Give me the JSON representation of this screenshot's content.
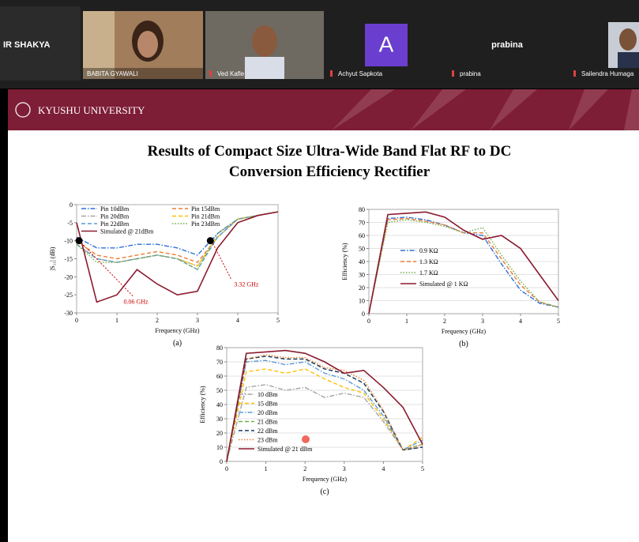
{
  "call": {
    "participants": [
      {
        "name": "IR SHAKYA"
      },
      {
        "name": "BABITA GYAWALI"
      },
      {
        "name": "Ved Kafle"
      },
      {
        "name": "Achyut Sapkota",
        "avatar": "A"
      },
      {
        "name": "prabina",
        "tile_label": "prabina"
      },
      {
        "name": "Sailendra Humaga"
      }
    ]
  },
  "slide": {
    "university": "KYUSHU UNIVERSITY",
    "title": [
      "Results of Compact Size Ultra-Wide Band Flat RF to DC",
      "Conversion Efficiency Rectifier"
    ]
  },
  "chart_data": [
    {
      "type": "line",
      "caption": "(a)",
      "xlabel": "Frequency (GHz)",
      "ylabel": "|S₁₁| (dB)",
      "x": [
        0,
        0.5,
        1,
        1.5,
        2,
        2.5,
        3,
        3.5,
        4,
        4.5,
        5
      ],
      "xlim": [
        0,
        5
      ],
      "xticks": [
        0,
        1,
        2,
        3,
        4,
        5
      ],
      "ylim": [
        -30,
        0
      ],
      "yticks": [
        -30,
        -25,
        -20,
        -15,
        -10,
        -5,
        0
      ],
      "grid": false,
      "legend": "top",
      "legend_columns": 2,
      "series": [
        {
          "name": "Pin 10dBm",
          "color": "#2f6fd6",
          "dash": "dash-dot",
          "values": [
            -9,
            -12,
            -12,
            -11,
            -11,
            -12,
            -14,
            -8,
            -4,
            -3,
            -2
          ]
        },
        {
          "name": "Pin 15dBm",
          "color": "#ed7d31",
          "dash": "dashed",
          "values": [
            -10,
            -14,
            -15,
            -14,
            -13,
            -14,
            -16,
            -9,
            -4,
            -3,
            -2
          ]
        },
        {
          "name": "Pin 20dBm",
          "color": "#a5a5a5",
          "dash": "dash-dot",
          "values": [
            -11,
            -15,
            -16,
            -15,
            -14,
            -15,
            -17,
            -9,
            -4,
            -3,
            -2
          ]
        },
        {
          "name": "Pin 21dBm",
          "color": "#ffc000",
          "dash": "dashed",
          "values": [
            -11,
            -15,
            -16,
            -15,
            -14,
            -15,
            -17,
            -9,
            -4,
            -3,
            -2
          ]
        },
        {
          "name": "Pin 22dBm",
          "color": "#5b9bd5",
          "dash": "dashed",
          "values": [
            -11,
            -15,
            -16,
            -15,
            -14,
            -15,
            -18,
            -9,
            -4,
            -3,
            -2
          ]
        },
        {
          "name": "Pin 23dBm",
          "color": "#70ad47",
          "dash": "dotted",
          "values": [
            -11,
            -16,
            -16,
            -15,
            -14,
            -15,
            -18,
            -8,
            -4,
            -3,
            -2
          ]
        },
        {
          "name": "Simulated @ 21dBm",
          "color": "#8b1a2f",
          "dash": "solid",
          "values": [
            -5,
            -27,
            -25,
            -18,
            -22,
            -25,
            -24,
            -12,
            -5,
            -3,
            -2
          ]
        }
      ],
      "annotations": [
        {
          "text": "0.06 GHz",
          "x": 0.06,
          "y": -10
        },
        {
          "text": "3.32 GHz",
          "x": 3.32,
          "y": -10
        }
      ]
    },
    {
      "type": "line",
      "caption": "(b)",
      "xlabel": "Frequency (GHz)",
      "ylabel": "Efficiency (%)",
      "x": [
        0,
        0.5,
        1,
        1.5,
        2,
        2.5,
        3,
        3.5,
        4,
        4.5,
        5
      ],
      "xlim": [
        0,
        5
      ],
      "xticks": [
        0,
        1,
        2,
        3,
        4,
        5
      ],
      "ylim": [
        0,
        80
      ],
      "yticks": [
        0,
        10,
        20,
        30,
        40,
        50,
        60,
        70,
        80
      ],
      "grid": true,
      "legend": "left",
      "legend_columns": 1,
      "series": [
        {
          "name": "0.9 KΩ",
          "color": "#2f6fd6",
          "dash": "dash-dot",
          "values": [
            0,
            73,
            74,
            72,
            68,
            62,
            60,
            38,
            18,
            8,
            5
          ]
        },
        {
          "name": "1.3 KΩ",
          "color": "#ed7d31",
          "dash": "dashed",
          "values": [
            0,
            72,
            73,
            71,
            68,
            62,
            62,
            42,
            22,
            9,
            5
          ]
        },
        {
          "name": "1.7 KΩ",
          "color": "#70ad47",
          "dash": "dotted",
          "values": [
            0,
            70,
            72,
            70,
            67,
            62,
            66,
            45,
            25,
            9,
            5
          ]
        },
        {
          "name": "Simulated @ 1 KΩ",
          "color": "#8b1a2f",
          "dash": "solid",
          "values": [
            0,
            76,
            77,
            78,
            74,
            64,
            57,
            60,
            50,
            30,
            10
          ]
        }
      ]
    },
    {
      "type": "line",
      "caption": "(c)",
      "xlabel": "Frequency (GHz)",
      "ylabel": "Efficiency (%)",
      "x": [
        0,
        0.5,
        1,
        1.5,
        2,
        2.5,
        3,
        3.5,
        4,
        4.5,
        5
      ],
      "xlim": [
        0,
        5
      ],
      "xticks": [
        0,
        1,
        2,
        3,
        4,
        5
      ],
      "ylim": [
        0,
        80
      ],
      "yticks": [
        0,
        10,
        20,
        30,
        40,
        50,
        60,
        70,
        80
      ],
      "grid": true,
      "legend": "left",
      "legend_columns": 1,
      "series": [
        {
          "name": "10 dBm",
          "color": "#a5a5a5",
          "dash": "dash-dot",
          "values": [
            0,
            52,
            54,
            50,
            52,
            45,
            48,
            45,
            28,
            8,
            10
          ]
        },
        {
          "name": "15 dBm",
          "color": "#ffc000",
          "dash": "dashed",
          "values": [
            0,
            63,
            65,
            62,
            65,
            58,
            52,
            48,
            30,
            8,
            17
          ]
        },
        {
          "name": "20 dBm",
          "color": "#5b9bd5",
          "dash": "dash-dot",
          "values": [
            0,
            70,
            71,
            68,
            70,
            62,
            58,
            50,
            32,
            8,
            15
          ]
        },
        {
          "name": "21 dBm",
          "color": "#70ad47",
          "dash": "dashed",
          "values": [
            0,
            72,
            74,
            72,
            72,
            65,
            62,
            55,
            35,
            8,
            12
          ]
        },
        {
          "name": "22 dBm",
          "color": "#1f3864",
          "dash": "dashed",
          "values": [
            0,
            72,
            74,
            72,
            72,
            65,
            62,
            55,
            35,
            8,
            10
          ]
        },
        {
          "name": "23 dBm",
          "color": "#ed7d31",
          "dash": "dotted",
          "values": [
            0,
            72,
            75,
            73,
            73,
            66,
            64,
            57,
            36,
            8,
            12
          ]
        },
        {
          "name": "Simulated @ 21 dBm",
          "color": "#8b1a2f",
          "dash": "solid",
          "values": [
            0,
            76,
            77,
            78,
            76,
            70,
            62,
            64,
            52,
            38,
            12
          ]
        }
      ]
    }
  ]
}
